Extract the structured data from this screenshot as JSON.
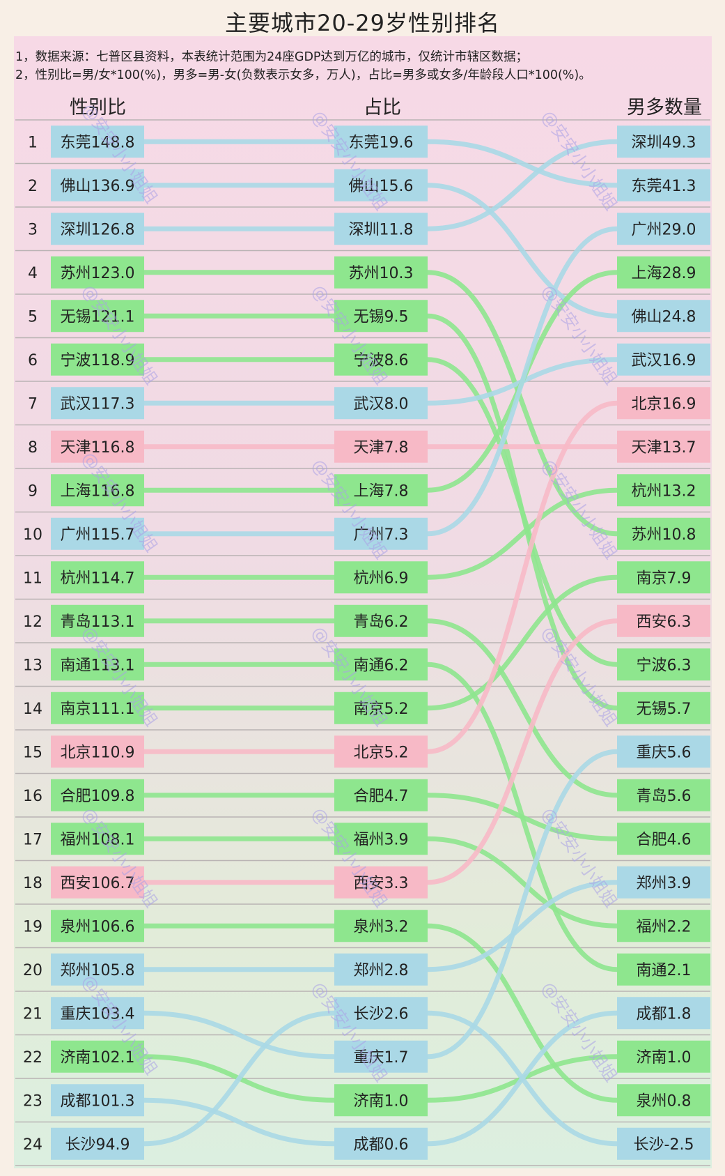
{
  "title": "主要城市20-29岁性别排名",
  "notes": [
    "1，数据来源：七普区县资料，本表统计范围为24座GDP达到万亿的城市，仅统计市辖区数据；",
    "2，性别比=男/女*100(%)，男多=男-女(负数表示女多，万人)，占比=男多或女多/年龄段人口*100(%)。"
  ],
  "headers": {
    "left": "性别比",
    "middle": "占比",
    "right": "男多数量"
  },
  "watermark": "@安安小小姐姐",
  "colors": {
    "blue": "#aad8e6",
    "green": "#8ee68e",
    "pink": "#f7b9c6"
  },
  "chart_data": {
    "type": "table",
    "ranks": [
      1,
      2,
      3,
      4,
      5,
      6,
      7,
      8,
      9,
      10,
      11,
      12,
      13,
      14,
      15,
      16,
      17,
      18,
      19,
      20,
      21,
      22,
      23,
      24
    ],
    "cities": {
      "东莞": {
        "color": "blue"
      },
      "佛山": {
        "color": "blue"
      },
      "深圳": {
        "color": "blue"
      },
      "苏州": {
        "color": "green"
      },
      "无锡": {
        "color": "green"
      },
      "宁波": {
        "color": "green"
      },
      "武汉": {
        "color": "blue"
      },
      "天津": {
        "color": "pink"
      },
      "上海": {
        "color": "green"
      },
      "广州": {
        "color": "blue"
      },
      "杭州": {
        "color": "green"
      },
      "青岛": {
        "color": "green"
      },
      "南通": {
        "color": "green"
      },
      "南京": {
        "color": "green"
      },
      "北京": {
        "color": "pink"
      },
      "合肥": {
        "color": "green"
      },
      "福州": {
        "color": "green"
      },
      "西安": {
        "color": "pink"
      },
      "泉州": {
        "color": "green"
      },
      "郑州": {
        "color": "blue"
      },
      "重庆": {
        "color": "blue"
      },
      "济南": {
        "color": "green"
      },
      "成都": {
        "color": "blue"
      },
      "长沙": {
        "color": "blue"
      }
    },
    "sex_ratio": [
      {
        "city": "东莞",
        "value": "148.8"
      },
      {
        "city": "佛山",
        "value": "136.9"
      },
      {
        "city": "深圳",
        "value": "126.8"
      },
      {
        "city": "苏州",
        "value": "123.0"
      },
      {
        "city": "无锡",
        "value": "121.1"
      },
      {
        "city": "宁波",
        "value": "118.9"
      },
      {
        "city": "武汉",
        "value": "117.3"
      },
      {
        "city": "天津",
        "value": "116.8"
      },
      {
        "city": "上海",
        "value": "116.8"
      },
      {
        "city": "广州",
        "value": "115.7"
      },
      {
        "city": "杭州",
        "value": "114.7"
      },
      {
        "city": "青岛",
        "value": "113.1"
      },
      {
        "city": "南通",
        "value": "113.1"
      },
      {
        "city": "南京",
        "value": "111.1"
      },
      {
        "city": "北京",
        "value": "110.9"
      },
      {
        "city": "合肥",
        "value": "109.8"
      },
      {
        "city": "福州",
        "value": "108.1"
      },
      {
        "city": "西安",
        "value": "106.7"
      },
      {
        "city": "泉州",
        "value": "106.6"
      },
      {
        "city": "郑州",
        "value": "105.8"
      },
      {
        "city": "重庆",
        "value": "103.4"
      },
      {
        "city": "济南",
        "value": "102.1"
      },
      {
        "city": "成都",
        "value": "101.3"
      },
      {
        "city": "长沙",
        "value": "94.9"
      }
    ],
    "share": [
      {
        "city": "东莞",
        "value": "19.6"
      },
      {
        "city": "佛山",
        "value": "15.6"
      },
      {
        "city": "深圳",
        "value": "11.8"
      },
      {
        "city": "苏州",
        "value": "10.3"
      },
      {
        "city": "无锡",
        "value": "9.5"
      },
      {
        "city": "宁波",
        "value": "8.6"
      },
      {
        "city": "武汉",
        "value": "8.0"
      },
      {
        "city": "天津",
        "value": "7.8"
      },
      {
        "city": "上海",
        "value": "7.8"
      },
      {
        "city": "广州",
        "value": "7.3"
      },
      {
        "city": "杭州",
        "value": "6.9"
      },
      {
        "city": "青岛",
        "value": "6.2"
      },
      {
        "city": "南通",
        "value": "6.2"
      },
      {
        "city": "南京",
        "value": "5.2"
      },
      {
        "city": "北京",
        "value": "5.2"
      },
      {
        "city": "合肥",
        "value": "4.7"
      },
      {
        "city": "福州",
        "value": "3.9"
      },
      {
        "city": "西安",
        "value": "3.3"
      },
      {
        "city": "泉州",
        "value": "3.2"
      },
      {
        "city": "郑州",
        "value": "2.8"
      },
      {
        "city": "长沙",
        "value": "2.6"
      },
      {
        "city": "重庆",
        "value": "1.7"
      },
      {
        "city": "济南",
        "value": "1.0"
      },
      {
        "city": "成都",
        "value": "0.6"
      }
    ],
    "male_surplus": [
      {
        "city": "深圳",
        "value": "49.3"
      },
      {
        "city": "东莞",
        "value": "41.3"
      },
      {
        "city": "广州",
        "value": "29.0"
      },
      {
        "city": "上海",
        "value": "28.9"
      },
      {
        "city": "佛山",
        "value": "24.8"
      },
      {
        "city": "武汉",
        "value": "16.9"
      },
      {
        "city": "北京",
        "value": "16.9"
      },
      {
        "city": "天津",
        "value": "13.7"
      },
      {
        "city": "杭州",
        "value": "13.2"
      },
      {
        "city": "苏州",
        "value": "10.8"
      },
      {
        "city": "南京",
        "value": "7.9"
      },
      {
        "city": "西安",
        "value": "6.3"
      },
      {
        "city": "宁波",
        "value": "6.3"
      },
      {
        "city": "无锡",
        "value": "5.7"
      },
      {
        "city": "重庆",
        "value": "5.6"
      },
      {
        "city": "青岛",
        "value": "5.6"
      },
      {
        "city": "合肥",
        "value": "4.6"
      },
      {
        "city": "郑州",
        "value": "3.9"
      },
      {
        "city": "福州",
        "value": "2.2"
      },
      {
        "city": "南通",
        "value": "2.1"
      },
      {
        "city": "成都",
        "value": "1.8"
      },
      {
        "city": "济南",
        "value": "1.0"
      },
      {
        "city": "泉州",
        "value": "0.8"
      },
      {
        "city": "长沙",
        "value": "-2.5"
      }
    ]
  }
}
